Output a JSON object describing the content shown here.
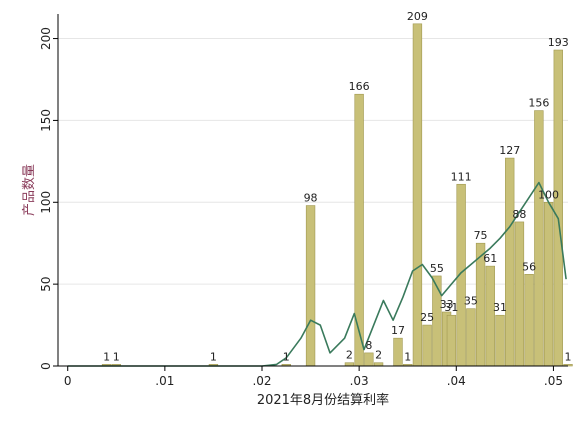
{
  "chart_data": {
    "type": "bar",
    "xlabel": "2021年8月份结算利率",
    "ylabel": "产品数量",
    "xlim": [
      -0.001,
      0.0515
    ],
    "ylim": [
      0,
      215
    ],
    "x_ticks": [
      0,
      0.01,
      0.02,
      0.03,
      0.04,
      0.05
    ],
    "x_tick_labels": [
      "0",
      ".01",
      ".02",
      ".03",
      ".04",
      ".05"
    ],
    "y_ticks": [
      0,
      50,
      100,
      150,
      200
    ],
    "y_tick_labels": [
      "0",
      "50",
      "100",
      "150",
      "200"
    ],
    "grid": "horizontal",
    "bar_width": 0.0009,
    "bars": [
      {
        "x": 0.004,
        "value": 1,
        "label": "1"
      },
      {
        "x": 0.005,
        "value": 1,
        "label": "1"
      },
      {
        "x": 0.015,
        "value": 1,
        "label": "1"
      },
      {
        "x": 0.0225,
        "value": 1,
        "label": "1"
      },
      {
        "x": 0.025,
        "value": 98,
        "label": "98"
      },
      {
        "x": 0.029,
        "value": 2,
        "label": "2"
      },
      {
        "x": 0.03,
        "value": 166,
        "label": "166"
      },
      {
        "x": 0.031,
        "value": 8,
        "label": "8"
      },
      {
        "x": 0.032,
        "value": 2,
        "label": "2"
      },
      {
        "x": 0.034,
        "value": 17,
        "label": "17"
      },
      {
        "x": 0.035,
        "value": 1,
        "label": "1"
      },
      {
        "x": 0.036,
        "value": 209,
        "label": "209"
      },
      {
        "x": 0.037,
        "value": 25,
        "label": "25"
      },
      {
        "x": 0.038,
        "value": 55,
        "label": "55"
      },
      {
        "x": 0.039,
        "value": 33,
        "label": "33"
      },
      {
        "x": 0.0395,
        "value": 31,
        "label": "31"
      },
      {
        "x": 0.0405,
        "value": 111,
        "label": "111"
      },
      {
        "x": 0.0415,
        "value": 35,
        "label": "35"
      },
      {
        "x": 0.0425,
        "value": 75,
        "label": "75"
      },
      {
        "x": 0.0435,
        "value": 61,
        "label": "61"
      },
      {
        "x": 0.0445,
        "value": 31,
        "label": "31"
      },
      {
        "x": 0.0455,
        "value": 127,
        "label": "127"
      },
      {
        "x": 0.0465,
        "value": 88,
        "label": "88"
      },
      {
        "x": 0.0475,
        "value": 56,
        "label": "56"
      },
      {
        "x": 0.0485,
        "value": 156,
        "label": "156"
      },
      {
        "x": 0.0495,
        "value": 100,
        "label": "100"
      },
      {
        "x": 0.0505,
        "value": 193,
        "label": "193"
      },
      {
        "x": 0.0515,
        "value": 1,
        "label": "1"
      }
    ],
    "density_curve": {
      "x": [
        0.0,
        0.005,
        0.01,
        0.015,
        0.02,
        0.0215,
        0.0225,
        0.024,
        0.025,
        0.026,
        0.027,
        0.0285,
        0.0295,
        0.0305,
        0.0315,
        0.0325,
        0.0335,
        0.0345,
        0.0355,
        0.0365,
        0.0375,
        0.0385,
        0.0395,
        0.0405,
        0.0415,
        0.0425,
        0.0435,
        0.0445,
        0.0455,
        0.0465,
        0.0475,
        0.0485,
        0.0495,
        0.0505,
        0.0513
      ],
      "y": [
        0,
        0,
        0,
        0,
        0,
        1,
        5,
        17,
        28,
        25,
        8,
        17,
        32,
        10,
        25,
        40,
        28,
        42,
        58,
        62,
        54,
        43,
        50,
        57,
        62,
        67,
        72,
        78,
        85,
        94,
        103,
        112,
        100,
        90,
        53
      ]
    },
    "colors": {
      "bar_fill": "#c8c078",
      "bar_stroke": "#a09850",
      "curve": "#3a7a5c",
      "axis": "#000000",
      "grid": "#e6e6e6",
      "ylabel": "#8a3b5a"
    }
  }
}
